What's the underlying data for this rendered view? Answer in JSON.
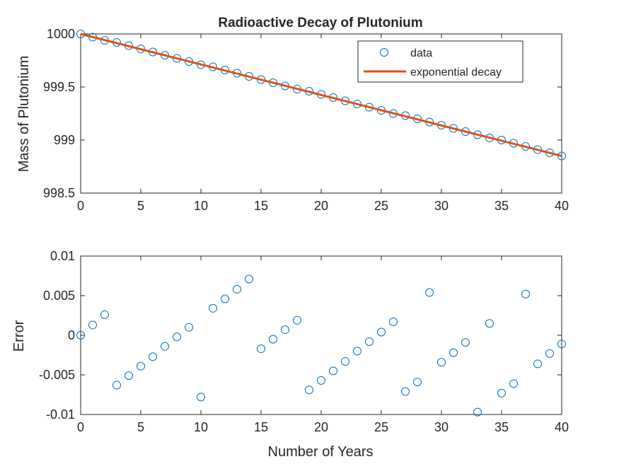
{
  "colors": {
    "data": "#0072BD",
    "fit": "#D95319",
    "axis": "#262626"
  },
  "chart_data": [
    {
      "type": "scatter",
      "title": "Radioactive Decay of Plutonium",
      "xlabel": "",
      "ylabel": "Mass of Plutonium",
      "xlim": [
        0,
        40
      ],
      "ylim": [
        998.5,
        1000
      ],
      "x_ticks": [
        "0",
        "5",
        "10",
        "15",
        "20",
        "25",
        "30",
        "35",
        "40"
      ],
      "y_ticks": [
        "998.5",
        "999",
        "999.5",
        "1000"
      ],
      "legend_position": "top-right",
      "series": [
        {
          "name": "data",
          "style": "markers",
          "x": [
            0,
            1,
            2,
            3,
            4,
            5,
            6,
            7,
            8,
            9,
            10,
            11,
            12,
            13,
            14,
            15,
            16,
            17,
            18,
            19,
            20,
            21,
            22,
            23,
            24,
            25,
            26,
            27,
            28,
            29,
            30,
            31,
            32,
            33,
            34,
            35,
            36,
            37,
            38,
            39,
            40
          ],
          "values": [
            1000,
            999.97,
            999.94,
            999.92,
            999.89,
            999.86,
            999.83,
            999.8,
            999.77,
            999.74,
            999.71,
            999.69,
            999.66,
            999.63,
            999.6,
            999.57,
            999.54,
            999.51,
            999.48,
            999.46,
            999.43,
            999.4,
            999.37,
            999.34,
            999.31,
            999.28,
            999.25,
            999.23,
            999.2,
            999.17,
            999.14,
            999.11,
            999.08,
            999.05,
            999.02,
            999.0,
            998.97,
            998.94,
            998.91,
            998.88,
            998.85
          ]
        },
        {
          "name": "exponential decay",
          "style": "line",
          "x": [
            0,
            40
          ],
          "values": [
            1000,
            998.85
          ]
        }
      ]
    },
    {
      "type": "scatter",
      "title": "",
      "xlabel": "Number of Years",
      "ylabel": "Error",
      "xlim": [
        0,
        40
      ],
      "ylim": [
        -0.01,
        0.01
      ],
      "x_ticks": [
        "0",
        "5",
        "10",
        "15",
        "20",
        "25",
        "30",
        "35",
        "40"
      ],
      "y_ticks": [
        "-0.01",
        "-0.005",
        "0",
        "0.005",
        "0.01"
      ],
      "series": [
        {
          "style": "markers",
          "x": [
            0,
            1,
            2,
            3,
            4,
            5,
            6,
            7,
            8,
            9,
            10,
            11,
            12,
            13,
            14,
            15,
            16,
            17,
            18,
            19,
            20,
            21,
            22,
            23,
            24,
            25,
            26,
            27,
            28,
            29,
            30,
            31,
            32,
            33,
            34,
            35,
            36,
            37,
            38,
            39,
            40
          ],
          "values": [
            0,
            0.0013,
            0.0026,
            -0.0063,
            -0.0051,
            -0.0039,
            -0.0027,
            -0.0014,
            -0.0002,
            0.001,
            -0.0078,
            0.0034,
            0.0046,
            0.0058,
            0.0071,
            -0.0017,
            -0.0005,
            0.0007,
            0.0019,
            -0.0069,
            -0.0057,
            -0.0045,
            -0.0033,
            -0.002,
            -0.0008,
            0.0004,
            0.0017,
            -0.0071,
            -0.0059,
            0.0054,
            -0.0034,
            -0.0022,
            -0.0009,
            -0.0097,
            0.0015,
            -0.0073,
            -0.0061,
            0.0052,
            -0.0036,
            -0.0023,
            -0.0011
          ]
        }
      ]
    }
  ]
}
